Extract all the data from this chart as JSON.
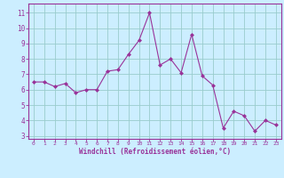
{
  "hours": [
    0,
    1,
    2,
    3,
    4,
    5,
    6,
    7,
    8,
    9,
    10,
    11,
    12,
    13,
    14,
    15,
    16,
    17,
    18,
    19,
    20,
    21,
    22,
    23
  ],
  "values": [
    6.5,
    6.5,
    6.2,
    6.4,
    5.8,
    6.0,
    6.0,
    7.2,
    7.3,
    8.3,
    9.2,
    11.0,
    7.6,
    8.0,
    7.1,
    9.6,
    6.9,
    6.3,
    3.5,
    4.6,
    4.3,
    3.3,
    4.0,
    3.7
  ],
  "line_color": "#993399",
  "marker_color": "#993399",
  "bg_color": "#cceeff",
  "grid_color": "#99cccc",
  "xlabel": "Windchill (Refroidissement éolien,°C)",
  "xlabel_color": "#993399",
  "tick_color": "#993399",
  "xlim": [
    -0.5,
    23.5
  ],
  "ylim": [
    2.8,
    11.6
  ],
  "yticks": [
    3,
    4,
    5,
    6,
    7,
    8,
    9,
    10,
    11
  ],
  "xticks": [
    0,
    1,
    2,
    3,
    4,
    5,
    6,
    7,
    8,
    9,
    10,
    11,
    12,
    13,
    14,
    15,
    16,
    17,
    18,
    19,
    20,
    21,
    22,
    23
  ],
  "spine_color": "#993399",
  "figsize": [
    3.2,
    2.0
  ],
  "dpi": 100
}
